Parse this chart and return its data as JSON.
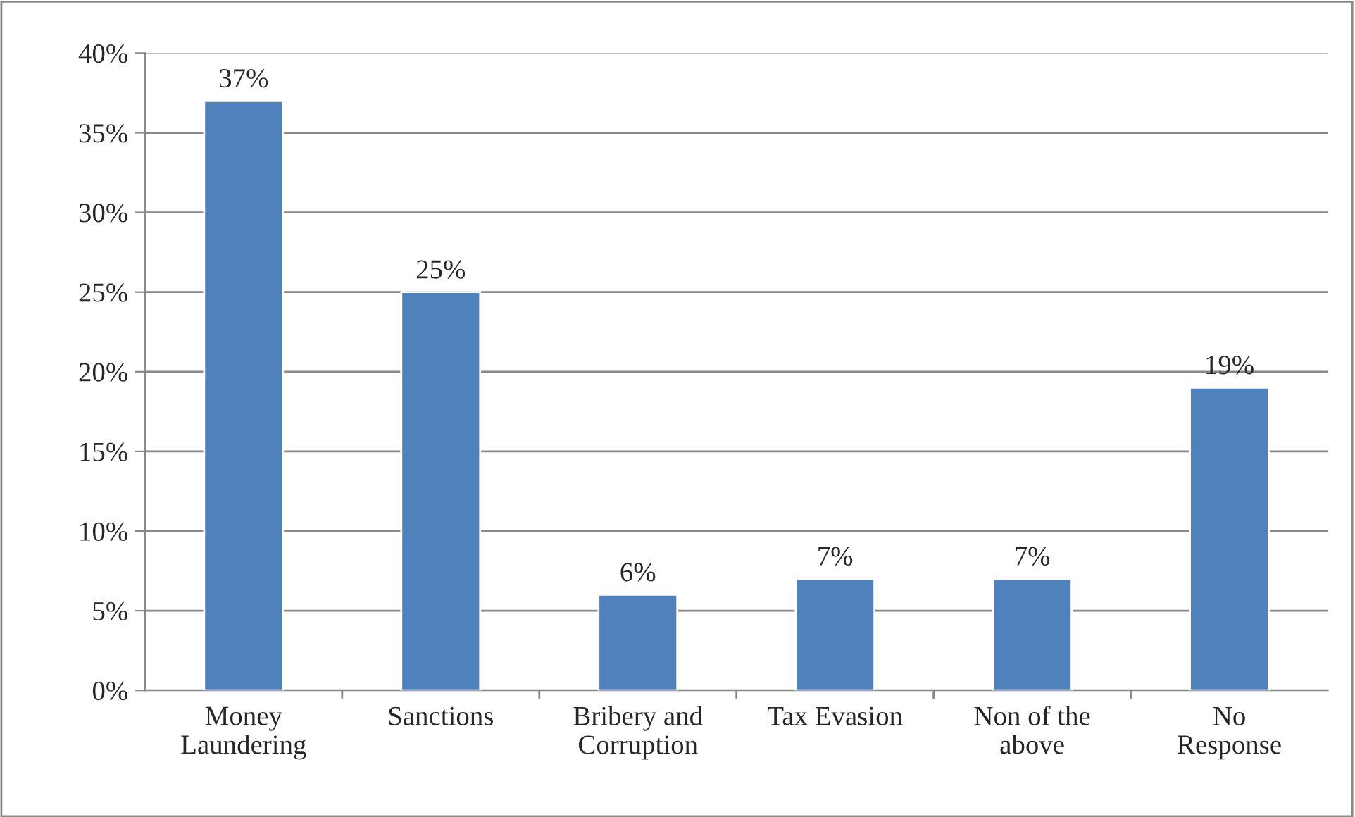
{
  "chart_data": {
    "type": "bar",
    "categories": [
      "Money\nLaundering",
      "Sanctions",
      "Bribery and\nCorruption",
      "Tax Evasion",
      "Non of the\nabove",
      "No\nResponse"
    ],
    "values": [
      37,
      25,
      6,
      7,
      7,
      19
    ],
    "color": "#4f81bd",
    "ylim": [
      0,
      40
    ],
    "yticks": [
      {
        "value": 0,
        "label": "0%"
      },
      {
        "value": 5,
        "label": "5%"
      },
      {
        "value": 10,
        "label": "10%"
      },
      {
        "value": 15,
        "label": "15%"
      },
      {
        "value": 20,
        "label": "20%"
      },
      {
        "value": 25,
        "label": "25%"
      },
      {
        "value": 30,
        "label": "30%"
      },
      {
        "value": 35,
        "label": "35%"
      },
      {
        "value": 40,
        "label": "40%"
      }
    ],
    "value_labels": [
      "37%",
      "25%",
      "6%",
      "7%",
      "7%",
      "19%"
    ],
    "grid": "y",
    "legend": false
  }
}
